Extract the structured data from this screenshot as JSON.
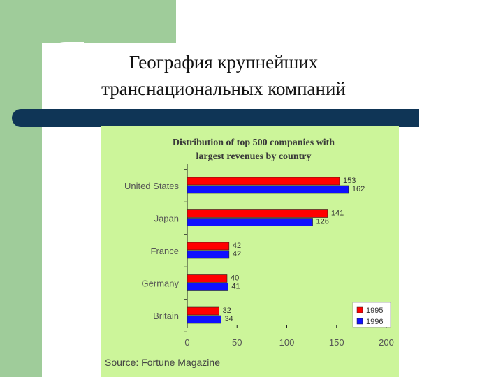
{
  "slide": {
    "title_line1": "География крупнейших",
    "title_line2": "транснациональных компаний"
  },
  "chart_data": {
    "type": "bar",
    "orientation": "horizontal",
    "title_line1": "Distribution of top 500 companies with",
    "title_line2": "largest revenues by country",
    "categories": [
      "United States",
      "Japan",
      "France",
      "Germany",
      "Britain"
    ],
    "series": [
      {
        "name": "1995",
        "values": [
          153,
          141,
          42,
          40,
          32
        ],
        "color": "#ff0000"
      },
      {
        "name": "1996",
        "values": [
          162,
          126,
          42,
          41,
          34
        ],
        "color": "#1010ff"
      }
    ],
    "xlim": [
      0,
      200
    ],
    "xticks": [
      0,
      50,
      100,
      150,
      200
    ],
    "source": "Source: Fortune Magazine",
    "legend_position": "bottom-right",
    "grid": false,
    "background": "#ccf59a"
  }
}
